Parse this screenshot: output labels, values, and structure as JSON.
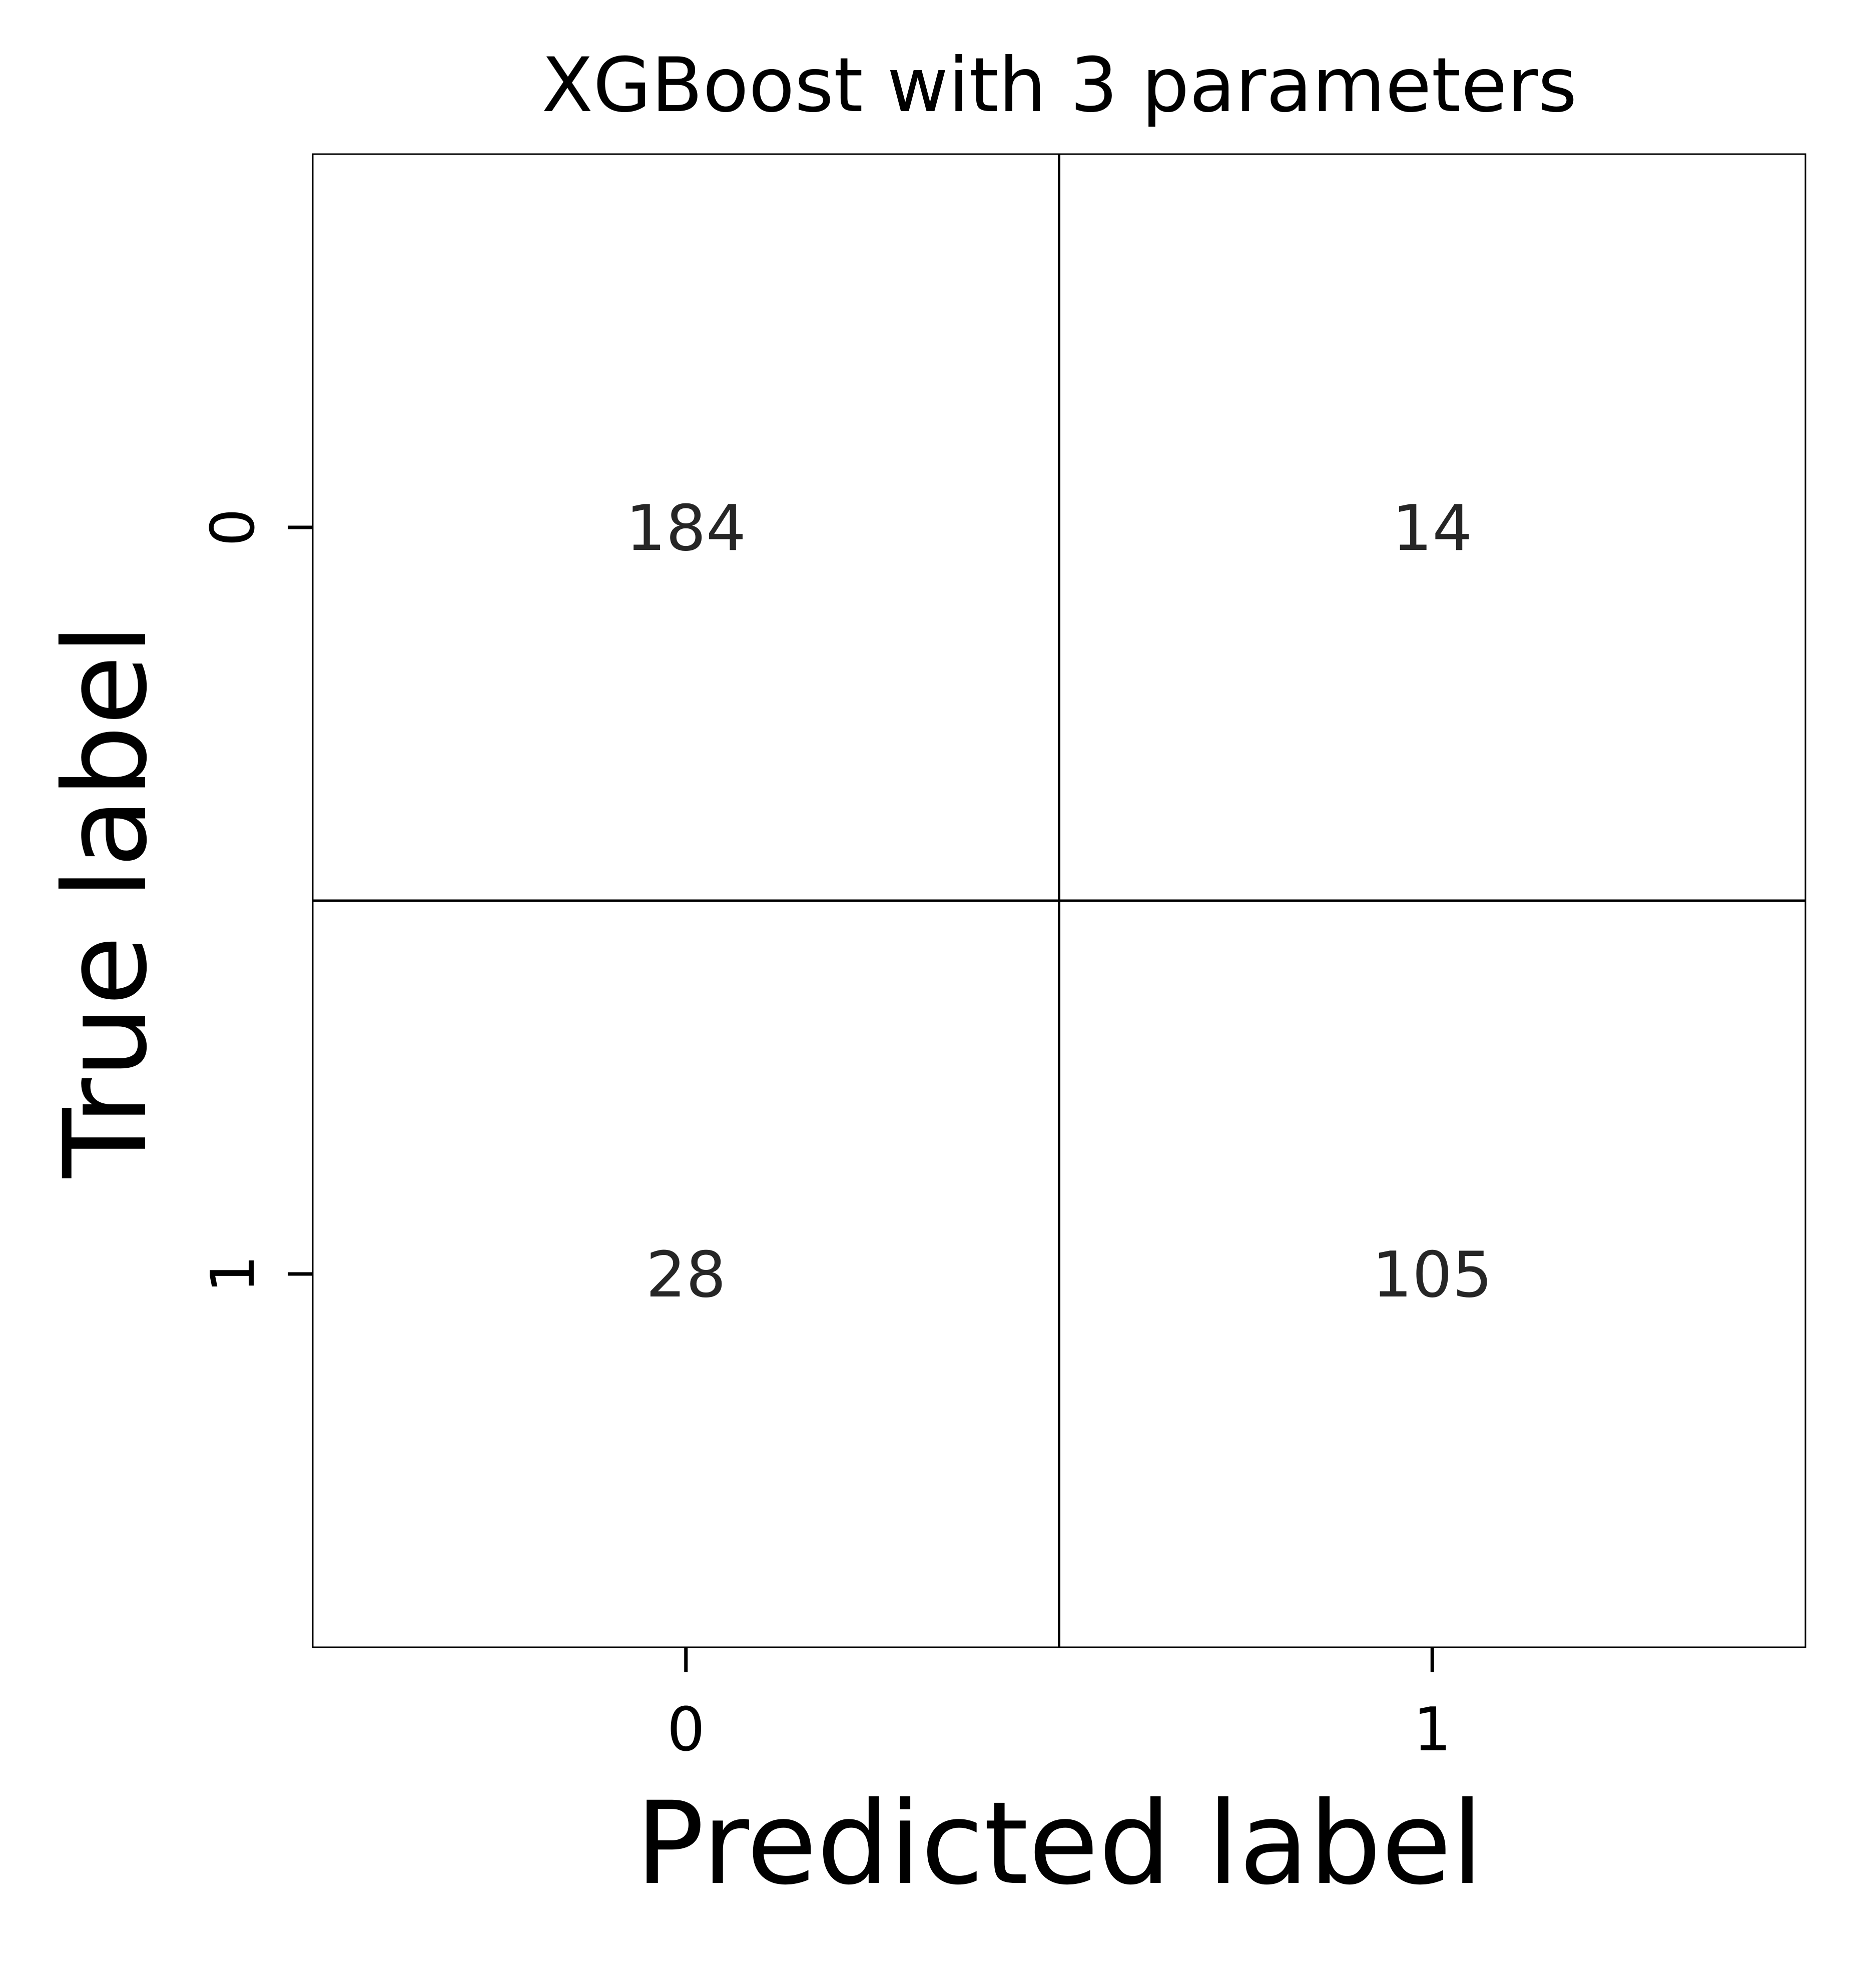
{
  "chart_data": {
    "type": "heatmap",
    "title": "XGBoost with 3 parameters",
    "xlabel": "Predicted label",
    "ylabel": "True label",
    "x_categories": [
      "0",
      "1"
    ],
    "y_categories": [
      "0",
      "1"
    ],
    "values": [
      [
        184,
        14
      ],
      [
        28,
        105
      ]
    ],
    "cell_labels": [
      [
        "184",
        "14"
      ],
      [
        "28",
        "105"
      ]
    ],
    "cell_color": "#ffffff",
    "line_color": "#000000",
    "annotation_color": "#262626",
    "text_color": "#000000"
  }
}
